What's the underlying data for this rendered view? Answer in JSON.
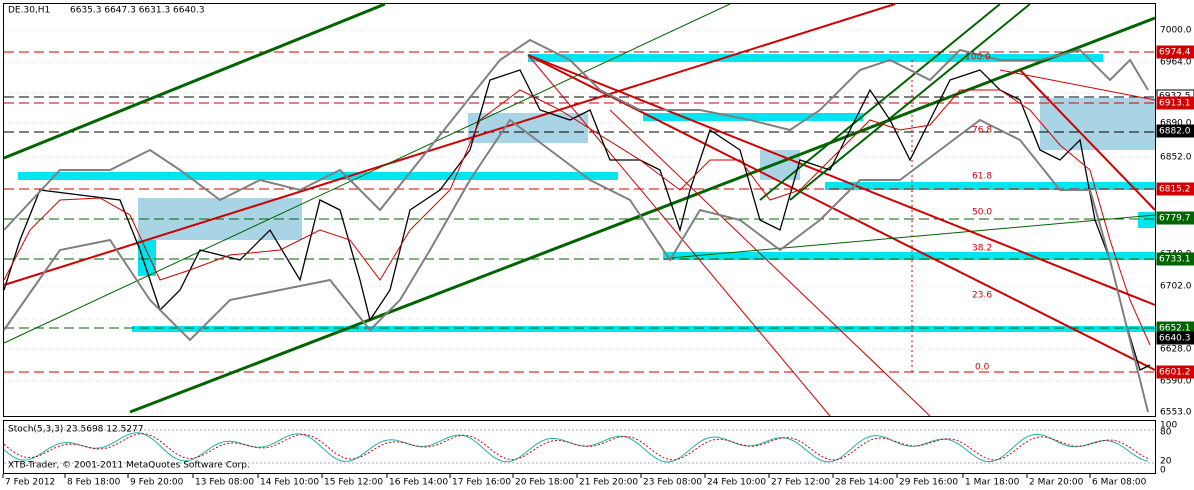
{
  "header": {
    "symbol": "DE.30,H1",
    "ohlc": "6635.3 6647.3 6631.3 6640.3"
  },
  "price_axis": [
    "7000.0",
    "6964.0",
    "6890.0",
    "6852.0",
    "6740.0",
    "6702.0",
    "6628.0",
    "6590.0",
    "6553.0"
  ],
  "price_tags": [
    "6974.4",
    "6932.5",
    "6913.1",
    "6882.0",
    "6815.2",
    "6779.7",
    "6733.1",
    "6652.1",
    "6640.3",
    "6601.2"
  ],
  "fib_levels": [
    "100.0",
    "76.8",
    "61.8",
    "50.0",
    "38.2",
    "23.6",
    "0.0"
  ],
  "time_axis": [
    "7 Feb 2012",
    "8 Feb 18:00",
    "9 Feb 20:00",
    "13 Feb 08:00",
    "14 Feb 10:00",
    "15 Feb 12:00",
    "16 Feb 14:00",
    "17 Feb 16:00",
    "20 Feb 18:00",
    "21 Feb 20:00",
    "23 Feb 08:00",
    "24 Feb 10:00",
    "27 Feb 12:00",
    "28 Feb 14:00",
    "29 Feb 16:00",
    "1 Mar 18:00",
    "2 Mar 20:00",
    "6 Mar 08:00"
  ],
  "stochastic": {
    "label": "Stoch(5,3,3) 23.5698 12.5277",
    "axis": [
      "100",
      "80",
      "20",
      "0"
    ]
  },
  "copyright": "XTB-Trader, © 2001-2011 MetaQuotes Software Corp."
}
